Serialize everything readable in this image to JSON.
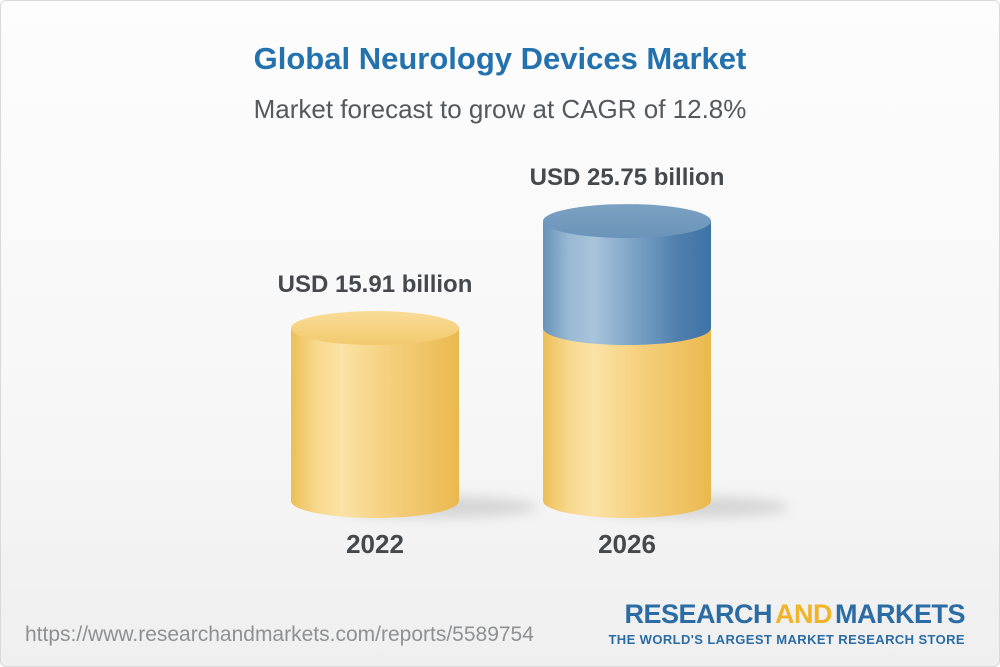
{
  "header": {
    "title": "Global Neurology Devices Market",
    "subtitle": "Market forecast to grow at CAGR of 12.8%"
  },
  "chart_data": {
    "type": "bar",
    "variant": "3d-stacked-cylinder",
    "title": "Global Neurology Devices Market",
    "subtitle": "Market forecast to grow at CAGR of 12.8%",
    "unit": "USD billion",
    "categories": [
      "2022",
      "2026"
    ],
    "values": [
      15.91,
      25.75
    ],
    "base_value": 15.91,
    "value_labels": [
      "USD 15.91 billion",
      "USD 25.75 billion"
    ],
    "cagr_percent": 12.8,
    "ylim": [
      0,
      25.75
    ],
    "grid": false,
    "legend": "none",
    "colors": {
      "base_segment": "#F5CE77",
      "growth_segment": "#5E8FBA",
      "label_text": "#46494C"
    }
  },
  "footer": {
    "url": "https://www.researchandmarkets.com/reports/5589754",
    "logo": {
      "part1": "RESEARCH",
      "part2": "AND",
      "part3": "MARKETS",
      "tagline": "THE WORLD'S LARGEST MARKET RESEARCH STORE",
      "blue": "#2B6CA5",
      "yellow": "#F0B42A"
    }
  }
}
